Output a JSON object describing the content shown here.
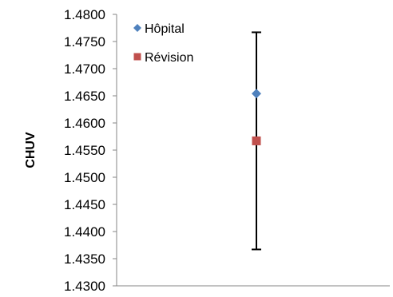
{
  "chart_data": {
    "type": "scatter",
    "ylabel": "CHUV",
    "xlabel": "",
    "ylim": [
      1.43,
      1.48
    ],
    "y_ticks": [
      "1.4300",
      "1.4350",
      "1.4400",
      "1.4450",
      "1.4500",
      "1.4550",
      "1.4600",
      "1.4650",
      "1.4700",
      "1.4750",
      "1.4800"
    ],
    "grid": false,
    "legend_position": "top-left",
    "series": [
      {
        "name": "Hôpital",
        "marker": "diamond",
        "color": "#4F81BD",
        "y": 1.4654
      },
      {
        "name": "Révision",
        "marker": "square",
        "color": "#C0504D",
        "y": 1.4567
      }
    ],
    "error_bar": {
      "upper": 1.4767,
      "lower": 1.4367,
      "color": "#000000"
    }
  }
}
